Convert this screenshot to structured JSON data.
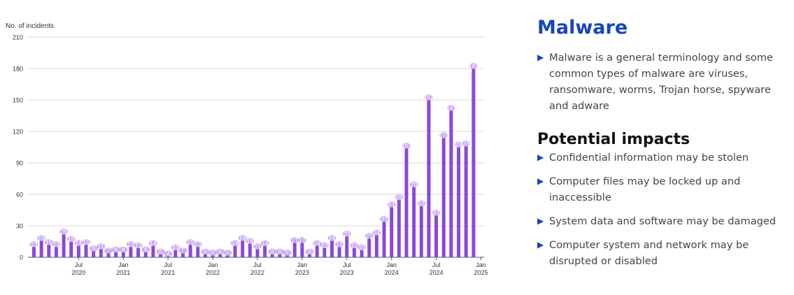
{
  "sidebar": {
    "title": "Malware",
    "intro": "Malware is a general terminology and some common types of malware are viruses, ransomware, worms, Trojan horse, spyware and adware",
    "impacts_heading": "Potential impacts",
    "impacts": [
      "Confidential information may be stolen",
      "Computer files may be locked up and inaccessible",
      "System data and software may be damaged",
      "Computer system and network may be disrupted or disabled"
    ]
  },
  "chart_data": {
    "type": "bar",
    "ylabel": "No. of incidents",
    "ylim": [
      0,
      210
    ],
    "yticks": [
      0,
      30,
      60,
      90,
      120,
      150,
      180,
      210
    ],
    "grid": true,
    "x_tick_labels": [
      {
        "index": 6,
        "month": "Jul",
        "year": "2020"
      },
      {
        "index": 12,
        "month": "Jan",
        "year": "2021"
      },
      {
        "index": 18,
        "month": "Jul",
        "year": "2021"
      },
      {
        "index": 24,
        "month": "Jan",
        "year": "2022"
      },
      {
        "index": 30,
        "month": "Jul",
        "year": "2022"
      },
      {
        "index": 36,
        "month": "Jan",
        "year": "2023"
      },
      {
        "index": 42,
        "month": "Jul",
        "year": "2023"
      },
      {
        "index": 48,
        "month": "Jan",
        "year": "2024"
      },
      {
        "index": 54,
        "month": "Jul",
        "year": "2024"
      },
      {
        "index": 60,
        "month": "Jan",
        "year": "2025"
      }
    ],
    "values": [
      13,
      19,
      15,
      13,
      25,
      18,
      14,
      15,
      9,
      11,
      7,
      8,
      8,
      13,
      12,
      8,
      14,
      6,
      4,
      10,
      7,
      15,
      13,
      6,
      5,
      6,
      5,
      14,
      19,
      16,
      11,
      14,
      6,
      6,
      5,
      17,
      17,
      6,
      14,
      12,
      19,
      13,
      23,
      12,
      10,
      21,
      24,
      37,
      51,
      58,
      107,
      70,
      52,
      153,
      43,
      117,
      143,
      108,
      109,
      183
    ],
    "colors": {
      "bar": "#8a48dc",
      "label_bg": "#c9a8f2",
      "grid": "#d9d9d9",
      "axis": "#555555"
    }
  }
}
